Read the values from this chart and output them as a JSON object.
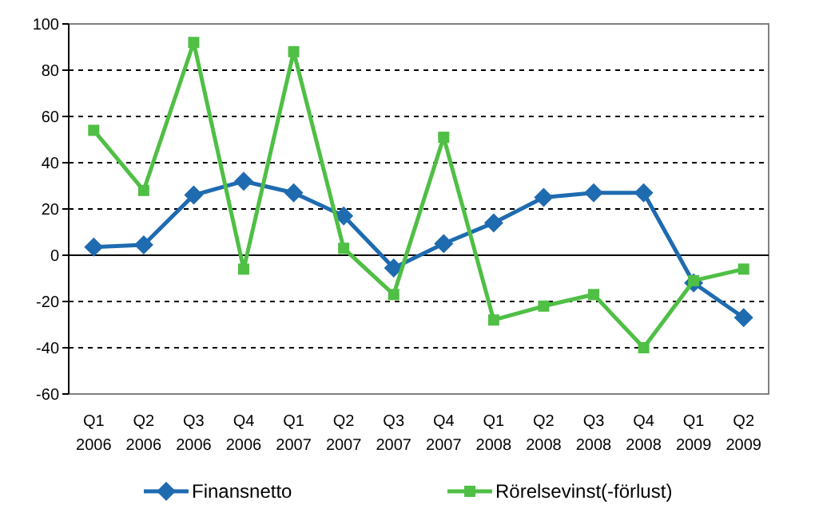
{
  "chart_data": {
    "type": "line",
    "categories": [
      "Q1\n2006",
      "Q2\n2006",
      "Q3\n2006",
      "Q4\n2006",
      "Q1\n2007",
      "Q2\n2007",
      "Q3\n2007",
      "Q4\n2007",
      "Q1\n2008",
      "Q2\n2008",
      "Q3\n2008",
      "Q4\n2008",
      "Q1\n2009",
      "Q2\n2009"
    ],
    "series": [
      {
        "name": "Finansnetto",
        "color": "#1f6bb0",
        "marker": "diamond",
        "values": [
          3.5,
          4.5,
          26,
          32,
          27,
          17,
          -5.5,
          5,
          14,
          25,
          27,
          27,
          -12,
          -27
        ]
      },
      {
        "name": "Rörelsevinst(-förlust)",
        "color": "#4fbf45",
        "marker": "square",
        "values": [
          54,
          28,
          92,
          -6,
          88,
          3,
          -17,
          51,
          -28,
          -22,
          -17,
          -40,
          -11,
          -6
        ]
      }
    ],
    "ylim": [
      -60,
      100
    ],
    "yticks": [
      -60,
      -40,
      -20,
      0,
      20,
      40,
      60,
      80,
      100
    ],
    "grid": "y",
    "legend": "bottom"
  }
}
